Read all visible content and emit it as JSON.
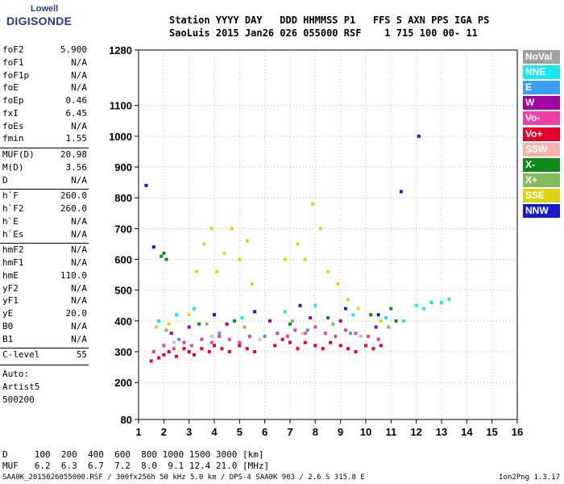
{
  "logo": {
    "line1": "Lowell",
    "line2": "DIGISONDE"
  },
  "header": {
    "line1": "Station YYYY DAY   DDD HHMMSS P1   FFS S AXN PPS IGA PS",
    "line2": "SaoLuis 2015 Jan26 026 055000 RSF    1 715 100 00- 11"
  },
  "params": [
    {
      "label": "foF2",
      "value": "5.900"
    },
    {
      "label": "foF1",
      "value": "N/A"
    },
    {
      "label": "foF1p",
      "value": "N/A"
    },
    {
      "label": "foE",
      "value": "N/A"
    },
    {
      "label": "foEp",
      "value": "0.46"
    },
    {
      "label": "fxI",
      "value": "6.45"
    },
    {
      "label": "foEs",
      "value": "N/A"
    },
    {
      "label": "fmin",
      "value": "1.55"
    },
    {
      "label": "MUF(D)",
      "value": "20.98"
    },
    {
      "label": "M(D)",
      "value": "3.56"
    },
    {
      "label": "D",
      "value": "N/A"
    },
    {
      "label": "h`F",
      "value": "260.0"
    },
    {
      "label": "h`F2",
      "value": "260.0"
    },
    {
      "label": "h`E",
      "value": "N/A"
    },
    {
      "label": "h`Es",
      "value": "N/A"
    },
    {
      "label": "hmF2",
      "value": "N/A"
    },
    {
      "label": "hmF1",
      "value": "N/A"
    },
    {
      "label": "hmE",
      "value": "110.0"
    },
    {
      "label": "yF2",
      "value": "N/A"
    },
    {
      "label": "yF1",
      "value": "N/A"
    },
    {
      "label": "yE",
      "value": "20.0"
    },
    {
      "label": "B0",
      "value": "N/A"
    },
    {
      "label": "B1",
      "value": "N/A"
    },
    {
      "label": "C-level",
      "value": "55"
    }
  ],
  "auto": {
    "line1": "Auto:",
    "line2": "Artist5",
    "line3": "500200"
  },
  "legend": [
    {
      "label": "NoVal",
      "color": "#a0a0a0"
    },
    {
      "label": "NNE",
      "color": "#19e6ee"
    },
    {
      "label": "E",
      "color": "#3aa2f0"
    },
    {
      "label": "W",
      "color": "#a4009e"
    },
    {
      "label": "Vo-",
      "color": "#ef3fa4"
    },
    {
      "label": "Vo+",
      "color": "#e6002a"
    },
    {
      "label": "SSW",
      "color": "#f4b4ac"
    },
    {
      "label": "X-",
      "color": "#108a1a"
    },
    {
      "label": "X+",
      "color": "#84bc5a"
    },
    {
      "label": "SSE",
      "color": "#dcd412"
    },
    {
      "label": "NNW",
      "color": "#1a1ac8"
    }
  ],
  "muf_table": {
    "line1": "D     100  200  400  600  800 1000 1500 3000 [km]",
    "line2": "MUF   6.2  6.3  6.7  7.2  8.0  9.1 12.4 21.0 [MHz]"
  },
  "footer": {
    "left": "SAA0K_2015026055000.RSF / 300fx256h 50 kHz 5.0 km / DPS-4 SAA0K 903 / 2.6 S 315.8 E",
    "right": "Ion2Png 1.3.17"
  },
  "chart_data": {
    "type": "scatter",
    "title": "",
    "xlabel": "",
    "ylabel": "",
    "xlim": [
      1,
      16
    ],
    "ylim": [
      80,
      1280
    ],
    "x_ticks": [
      1,
      2,
      3,
      4,
      5,
      6,
      7,
      8,
      9,
      10,
      11,
      12,
      13,
      14,
      15,
      16
    ],
    "y_ticks": [
      80,
      200,
      300,
      400,
      500,
      600,
      700,
      800,
      900,
      1000,
      1100,
      1280
    ],
    "grid": true,
    "legend_position": "right",
    "series": [
      {
        "name": "Vo+",
        "color": "#e6002a",
        "points": [
          [
            1.5,
            270
          ],
          [
            1.8,
            280
          ],
          [
            2.0,
            290
          ],
          [
            2.2,
            300
          ],
          [
            2.5,
            285
          ],
          [
            2.8,
            310
          ],
          [
            3.0,
            300
          ],
          [
            3.2,
            290
          ],
          [
            3.5,
            310
          ],
          [
            3.8,
            300
          ],
          [
            4.0,
            320
          ],
          [
            4.3,
            310
          ],
          [
            4.6,
            300
          ],
          [
            5.0,
            320
          ],
          [
            5.3,
            310
          ],
          [
            5.6,
            300
          ],
          [
            6.4,
            320
          ],
          [
            6.7,
            340
          ],
          [
            7.0,
            330
          ],
          [
            7.3,
            310
          ],
          [
            7.6,
            330
          ],
          [
            8.0,
            320
          ],
          [
            8.3,
            310
          ],
          [
            8.6,
            330
          ],
          [
            9.0,
            320
          ],
          [
            9.3,
            310
          ],
          [
            9.6,
            300
          ],
          [
            10.0,
            320
          ],
          [
            10.3,
            310
          ],
          [
            10.6,
            320
          ]
        ]
      },
      {
        "name": "Vo-",
        "color": "#ef3fa4",
        "points": [
          [
            1.6,
            300
          ],
          [
            2.0,
            320
          ],
          [
            2.4,
            310
          ],
          [
            2.8,
            330
          ],
          [
            3.1,
            320
          ],
          [
            3.5,
            340
          ],
          [
            3.9,
            330
          ],
          [
            4.2,
            350
          ],
          [
            4.6,
            340
          ],
          [
            5.0,
            330
          ],
          [
            5.4,
            350
          ],
          [
            6.5,
            360
          ],
          [
            6.9,
            350
          ],
          [
            7.2,
            370
          ],
          [
            7.6,
            360
          ],
          [
            8.0,
            380
          ],
          [
            8.4,
            360
          ],
          [
            8.8,
            350
          ],
          [
            9.2,
            370
          ],
          [
            9.6,
            360
          ],
          [
            10.1,
            350
          ],
          [
            10.5,
            340
          ]
        ]
      },
      {
        "name": "SSE",
        "color": "#dcd412",
        "points": [
          [
            1.7,
            380
          ],
          [
            2.2,
            390
          ],
          [
            3.0,
            420
          ],
          [
            3.3,
            560
          ],
          [
            3.6,
            650
          ],
          [
            3.9,
            700
          ],
          [
            4.1,
            560
          ],
          [
            4.4,
            620
          ],
          [
            4.7,
            700
          ],
          [
            5.0,
            600
          ],
          [
            5.3,
            660
          ],
          [
            5.5,
            520
          ],
          [
            6.8,
            600
          ],
          [
            7.3,
            650
          ],
          [
            7.6,
            600
          ],
          [
            7.9,
            780
          ],
          [
            8.2,
            700
          ],
          [
            8.5,
            560
          ],
          [
            8.9,
            520
          ],
          [
            9.3,
            470
          ],
          [
            9.7,
            440
          ],
          [
            10.2,
            420
          ],
          [
            10.6,
            400
          ]
        ]
      },
      {
        "name": "NNE",
        "color": "#19e6ee",
        "points": [
          [
            1.8,
            400
          ],
          [
            2.5,
            420
          ],
          [
            3.2,
            440
          ],
          [
            4.0,
            420
          ],
          [
            5.1,
            410
          ],
          [
            6.8,
            430
          ],
          [
            8.0,
            450
          ],
          [
            9.5,
            420
          ],
          [
            10.8,
            410
          ],
          [
            11.5,
            400
          ],
          [
            12.0,
            450
          ],
          [
            12.3,
            440
          ],
          [
            12.6,
            460
          ],
          [
            13.0,
            460
          ],
          [
            13.3,
            470
          ]
        ]
      },
      {
        "name": "X-",
        "color": "#108a1a",
        "points": [
          [
            1.9,
            610
          ],
          [
            2.0,
            620
          ],
          [
            2.1,
            600
          ],
          [
            3.4,
            390
          ],
          [
            4.8,
            400
          ],
          [
            7.0,
            390
          ],
          [
            8.5,
            410
          ],
          [
            10.2,
            420
          ],
          [
            11.0,
            440
          ],
          [
            11.2,
            400
          ]
        ]
      },
      {
        "name": "NNW",
        "color": "#1a1ac8",
        "points": [
          [
            1.3,
            840
          ],
          [
            1.6,
            640
          ],
          [
            4.0,
            420
          ],
          [
            5.6,
            430
          ],
          [
            7.4,
            450
          ],
          [
            9.2,
            440
          ],
          [
            10.5,
            420
          ],
          [
            11.4,
            820
          ],
          [
            12.1,
            1000
          ]
        ]
      },
      {
        "name": "W",
        "color": "#a4009e",
        "points": [
          [
            2.3,
            360
          ],
          [
            3.0,
            380
          ],
          [
            4.5,
            390
          ],
          [
            6.2,
            400
          ],
          [
            7.8,
            410
          ],
          [
            9.0,
            400
          ],
          [
            10.4,
            380
          ]
        ]
      },
      {
        "name": "X+",
        "color": "#84bc5a",
        "points": [
          [
            2.1,
            370
          ],
          [
            3.7,
            390
          ],
          [
            5.2,
            380
          ],
          [
            7.1,
            400
          ],
          [
            8.7,
            390
          ],
          [
            10.9,
            380
          ]
        ]
      },
      {
        "name": "E",
        "color": "#3aa2f0",
        "points": [
          [
            2.6,
            340
          ],
          [
            4.2,
            360
          ],
          [
            6.0,
            350
          ],
          [
            7.7,
            370
          ],
          [
            9.4,
            360
          ]
        ]
      },
      {
        "name": "SSW",
        "color": "#f4b4ac",
        "points": [
          [
            2.4,
            330
          ],
          [
            3.9,
            350
          ],
          [
            5.8,
            340
          ],
          [
            7.5,
            360
          ],
          [
            9.8,
            350
          ]
        ]
      }
    ]
  }
}
